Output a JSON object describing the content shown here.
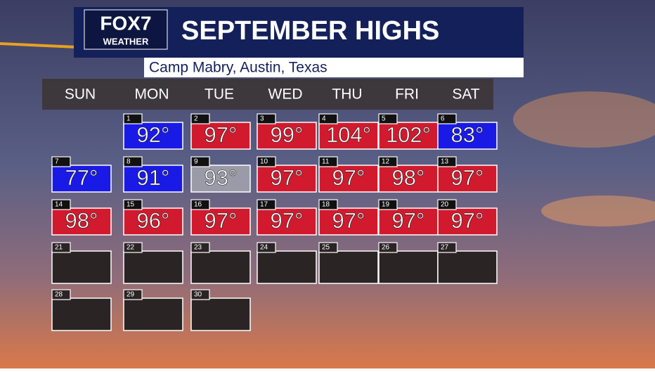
{
  "header": {
    "logo": "FOX7",
    "logo_sub": "WEATHER",
    "title": "SEPTEMBER HIGHS",
    "subtitle": "Camp Mabry, Austin, Texas"
  },
  "weekdays": [
    "SUN",
    "MON",
    "TUE",
    "WED",
    "THU",
    "FRI",
    "SAT"
  ],
  "days": [
    {
      "day": 1,
      "temp": "92°",
      "color": "#1a1ae6"
    },
    {
      "day": 2,
      "temp": "97°",
      "color": "#d11a2e"
    },
    {
      "day": 3,
      "temp": "99°",
      "color": "#d11a2e"
    },
    {
      "day": 4,
      "temp": "104°",
      "color": "#d11a2e"
    },
    {
      "day": 5,
      "temp": "102°",
      "color": "#d11a2e"
    },
    {
      "day": 6,
      "temp": "83°",
      "color": "#1a1ae6"
    },
    {
      "day": 7,
      "temp": "77°",
      "color": "#1a1ae6"
    },
    {
      "day": 8,
      "temp": "91°",
      "color": "#1a1ae6"
    },
    {
      "day": 9,
      "temp": "93°",
      "color": "#9a9aa8"
    },
    {
      "day": 10,
      "temp": "97°",
      "color": "#d11a2e"
    },
    {
      "day": 11,
      "temp": "97°",
      "color": "#d11a2e"
    },
    {
      "day": 12,
      "temp": "98°",
      "color": "#d11a2e"
    },
    {
      "day": 13,
      "temp": "97°",
      "color": "#d11a2e"
    },
    {
      "day": 14,
      "temp": "98°",
      "color": "#d11a2e"
    },
    {
      "day": 15,
      "temp": "96°",
      "color": "#d11a2e"
    },
    {
      "day": 16,
      "temp": "97°",
      "color": "#d11a2e"
    },
    {
      "day": 17,
      "temp": "97°",
      "color": "#d11a2e"
    },
    {
      "day": 18,
      "temp": "97°",
      "color": "#d11a2e"
    },
    {
      "day": 19,
      "temp": "97°",
      "color": "#d11a2e"
    },
    {
      "day": 20,
      "temp": "97°",
      "color": "#d11a2e"
    },
    {
      "day": 21,
      "color": "#2b2425"
    },
    {
      "day": 22,
      "color": "#2b2425"
    },
    {
      "day": 23,
      "color": "#2b2425"
    },
    {
      "day": 24,
      "color": "#2b2425"
    },
    {
      "day": 25,
      "color": "#2b2425"
    },
    {
      "day": 26,
      "color": "#2b2425"
    },
    {
      "day": 27,
      "color": "#2b2425"
    },
    {
      "day": 28,
      "color": "#2b2425"
    },
    {
      "day": 29,
      "color": "#2b2425"
    },
    {
      "day": 30,
      "color": "#2b2425"
    }
  ]
}
